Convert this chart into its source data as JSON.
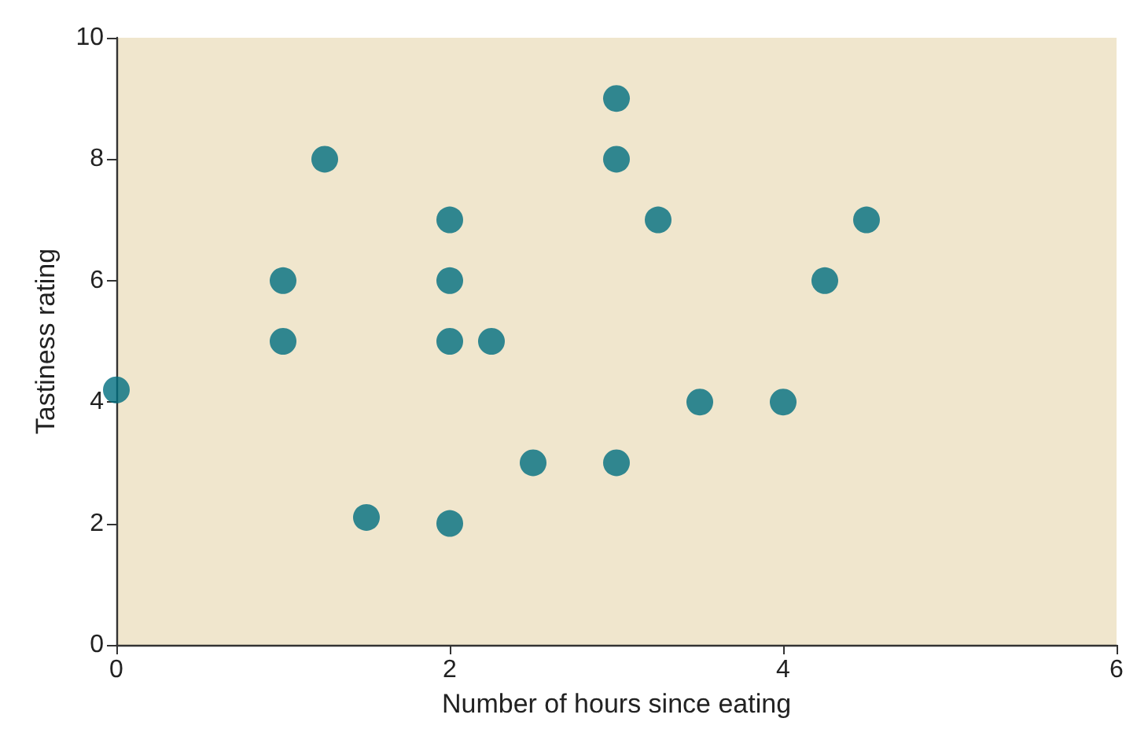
{
  "chart_data": {
    "type": "scatter",
    "xlabel": "Number of hours since eating",
    "ylabel": "Tastiness rating",
    "x": [
      0,
      1,
      1,
      1.25,
      1.5,
      2,
      2,
      2,
      2,
      2.25,
      2.5,
      3,
      3,
      3,
      3.25,
      3.5,
      4,
      4.25,
      4.5
    ],
    "values": [
      4.2,
      6,
      5,
      8,
      2.1,
      7,
      6,
      5,
      2,
      5,
      3,
      9,
      8,
      3,
      7,
      4,
      4,
      6,
      7
    ],
    "color": "#006e80",
    "marker": "circle",
    "xlim": [
      0,
      6
    ],
    "xticks": [
      0,
      2,
      4,
      6
    ],
    "ylim": [
      0,
      10
    ],
    "yticks": [
      0,
      2,
      4,
      6,
      8,
      10
    ],
    "grid": false
  }
}
